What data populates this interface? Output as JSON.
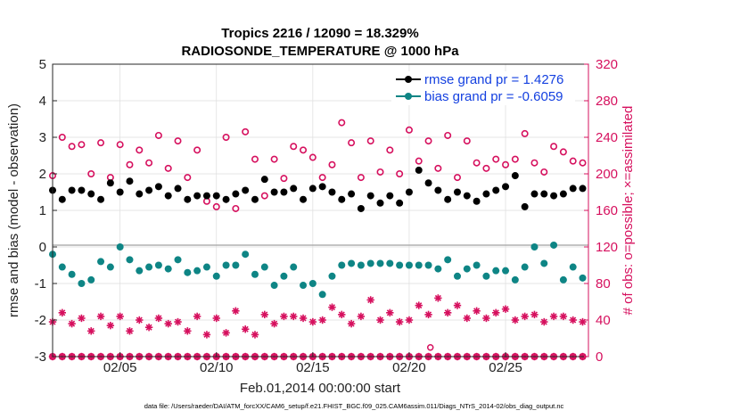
{
  "colors": {
    "rmse": "#000000",
    "bias": "#0e8585",
    "obs": "#d6105e",
    "legend_text": "#1440e0",
    "zero_line": "#b0b0b0",
    "grid": "#dddddd"
  },
  "chart_data": {
    "type": "scatter",
    "title_line1": "Tropics 2216 / 12090 = 18.329%",
    "title_line2": "RADIOSONDE_TEMPERATURE @ 1000 hPa",
    "ylabel_left": "rmse and bias (model - observation)",
    "ylabel_right": "# of obs: o=possible; ×=assimilated",
    "xlabel": "Feb.01,2014 00:00:00 start",
    "footer": "data file: /Users/raeder/DAI/ATM_forcXX/CAM6_setup/f.e21.FHIST_BGC.f09_025.CAM6assim.011/Diags_NTrS_2014-02/obs_diag_output.nc",
    "x_unit": "days since Feb.01,2014 00:00",
    "xlim": [
      0.5,
      28.3
    ],
    "ylim_left": [
      -3,
      5
    ],
    "ylim_right": [
      0,
      320
    ],
    "yticks_left": [
      -3,
      -2,
      -1,
      0,
      1,
      2,
      3,
      4,
      5
    ],
    "yticks_left_labels": [
      "-3",
      "-2",
      "-1",
      "0",
      "1",
      "2",
      "3",
      "4",
      "5"
    ],
    "yticks_right": [
      0,
      40,
      80,
      120,
      160,
      200,
      240,
      280,
      320
    ],
    "yticks_right_labels": [
      "0",
      "40",
      "80",
      "120",
      "160",
      "200",
      "240",
      "280",
      "320"
    ],
    "xticks": [
      4,
      9,
      14,
      19,
      24
    ],
    "xtick_labels": [
      "02/05",
      "02/10",
      "02/15",
      "02/20",
      "02/25"
    ],
    "legend": {
      "rmse_label": "rmse grand pr = 1.4276",
      "bias_label": "bias grand pr = -0.6059"
    },
    "x": [
      0.5,
      1,
      1.5,
      2,
      2.5,
      3,
      3.5,
      4,
      4.5,
      5,
      5.5,
      6,
      6.5,
      7,
      7.5,
      8,
      8.5,
      9,
      9.5,
      10,
      10.5,
      11,
      11.5,
      12,
      12.5,
      13,
      13.5,
      14,
      14.5,
      15,
      15.5,
      16,
      16.5,
      17,
      17.5,
      18,
      18.5,
      19,
      19.5,
      20,
      20.5,
      21,
      21.5,
      22,
      22.5,
      23,
      23.5,
      24,
      24.5,
      25,
      25.5,
      26,
      26.5,
      27,
      27.5,
      28
    ],
    "series": [
      {
        "name": "rmse",
        "values": [
          1.55,
          1.3,
          1.55,
          1.55,
          1.45,
          1.3,
          1.75,
          1.5,
          1.8,
          1.45,
          1.55,
          1.65,
          1.4,
          1.6,
          1.3,
          1.4,
          1.4,
          1.4,
          1.3,
          1.45,
          1.55,
          1.3,
          1.85,
          1.5,
          1.5,
          1.6,
          1.3,
          1.6,
          1.65,
          1.5,
          1.3,
          1.45,
          1.05,
          1.4,
          1.2,
          1.4,
          1.2,
          1.5,
          2.1,
          1.75,
          1.55,
          1.3,
          1.5,
          1.4,
          1.25,
          1.45,
          1.55,
          1.65,
          1.95,
          1.1,
          1.45,
          1.45,
          1.4,
          1.45,
          1.6,
          1.6
        ]
      },
      {
        "name": "bias",
        "values": [
          -0.2,
          -0.55,
          -0.75,
          -1.0,
          -0.9,
          -0.4,
          -0.55,
          0.0,
          -0.35,
          -0.65,
          -0.55,
          -0.5,
          -0.6,
          -0.35,
          -0.7,
          -0.65,
          -0.55,
          -0.8,
          -0.5,
          -0.5,
          -0.2,
          -0.75,
          -0.55,
          -1.05,
          -0.8,
          -0.55,
          -1.05,
          -1.0,
          -1.3,
          -0.8,
          -0.5,
          -0.45,
          -0.5,
          -0.45,
          -0.45,
          -0.45,
          -0.5,
          -0.5,
          -0.5,
          -0.5,
          -0.6,
          -0.35,
          -0.8,
          -0.6,
          -0.5,
          -0.8,
          -0.65,
          -0.65,
          -0.9,
          -0.55,
          0.0,
          -0.45,
          0.05,
          -0.9,
          -0.55,
          -0.85
        ]
      },
      {
        "name": "possible",
        "values": [
          198,
          240,
          230,
          232,
          200,
          234,
          196,
          232,
          210,
          226,
          212,
          242,
          206,
          236,
          196,
          226,
          170,
          164,
          240,
          162,
          246,
          216,
          176,
          216,
          195,
          230,
          226,
          218,
          196,
          210,
          256,
          234,
          196,
          236,
          202,
          226,
          200,
          248,
          214,
          236,
          206,
          242,
          196,
          236,
          212,
          206,
          216,
          210,
          216,
          244,
          212,
          202,
          230,
          224,
          214,
          212
        ]
      },
      {
        "name": "assimilated",
        "values": [
          38,
          48,
          36,
          42,
          28,
          44,
          34,
          44,
          28,
          40,
          32,
          42,
          36,
          38,
          28,
          44,
          24,
          42,
          26,
          50,
          30,
          24,
          46,
          36,
          44,
          44,
          42,
          38,
          40,
          54,
          46,
          36,
          44,
          62,
          40,
          48,
          38,
          40,
          56,
          46,
          64,
          48,
          56,
          42,
          50,
          42,
          48,
          52,
          40,
          44,
          46,
          38,
          44,
          44,
          40,
          38
        ]
      },
      {
        "name": "possible_zero",
        "values": [
          0,
          0,
          0,
          0,
          0,
          0,
          0,
          0,
          0,
          0,
          0,
          0,
          0,
          0,
          0,
          0,
          0,
          0,
          0,
          0,
          0,
          0,
          0,
          0,
          0,
          0,
          0,
          0,
          0,
          0,
          0,
          0,
          0,
          0,
          0,
          0,
          0,
          0,
          0,
          0,
          0,
          0,
          0,
          0,
          0,
          0,
          0,
          0,
          0,
          0,
          0,
          0,
          0,
          0,
          0,
          0
        ]
      },
      {
        "name": "assimilated_zero",
        "values": [
          0,
          0,
          0,
          0,
          0,
          0,
          0,
          0,
          0,
          0,
          0,
          0,
          0,
          0,
          0,
          0,
          0,
          0,
          0,
          0,
          0,
          0,
          0,
          0,
          0,
          0,
          0,
          0,
          0,
          0,
          0,
          0,
          0,
          0,
          0,
          0,
          0,
          0,
          0,
          0,
          0,
          0,
          0,
          0,
          0,
          0,
          0,
          0,
          0,
          0,
          0,
          0,
          0,
          0,
          0,
          0
        ]
      }
    ],
    "outliers_possible": [
      {
        "x": 20.1,
        "y": 10
      }
    ]
  }
}
